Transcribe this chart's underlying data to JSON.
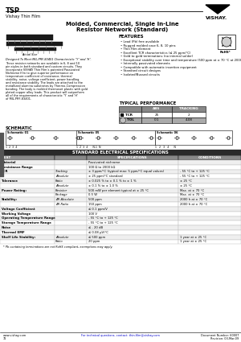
{
  "title_product": "TSP",
  "title_sub": "Vishay Thin Film",
  "title_main1": "Molded, Commercial, Single In-Line",
  "title_main2": "Resistor Network (Standard)",
  "brand": "VISHAY.",
  "features_title": "FEATURES",
  "features": [
    "Lead (Pb) free available",
    "Rugged molded case 6, 8, 10 pins",
    "Thin Film element",
    "Excellent TCR characteristics (≤ 25 ppm/°C)",
    "Gold to gold terminations (no internal solder)",
    "Exceptional stability over time and temperature (500 ppm at ± 70 °C at 2000 h)",
    "Internally passivated elements",
    "Compatible with automatic insertion equipment",
    "Standard circuit designs",
    "Isolated/Bussed circuits"
  ],
  "description1": "Designed To Meet MIL-PRF-83401 Characteristic ‘Y’ and ‘H’.",
  "description2": "These resistor networks are available in 6, 8 and 10 pin styles in both standard and custom circuits. They incorporate VISHAY Thin Film’s patented Passivated Nichrome film to give superior performance on temperature coefficient of resistance, thermal stability, noise, voltage coefficient, power handling and resistance stability. The leads are attached to the metallized alumina substrates by Thermo-Compression bonding. The body is molded thermoset plastic with gold plated copper alloy leads. This product will outperform all of the requirements of characteristic ‘Y’ and ‘H’ of MIL-PRF-83401.",
  "typical_title": "TYPICAL PERFORMANCE",
  "typical_headers": [
    "",
    "ABS",
    "TRACKING"
  ],
  "typical_row1_label": "TCR",
  "typical_row1_abs": "25",
  "typical_row1_track": "2",
  "typical_row2_label": "TOL",
  "typical_row2_abs": "0.1",
  "typical_row2_track": "4.08",
  "schematic_title": "SCHEMATIC",
  "sch_labels": [
    "Schematic 01",
    "Schematic 05",
    "Schematic 06"
  ],
  "sch_pins1": "1  2  3  4",
  "sch_pins2": "1  2  3  4      N-1  N",
  "sch_pins3": "1   2   3   4      N",
  "spec_title": "STANDARD ELECTRICAL SPECIFICATIONS",
  "spec_rows": [
    [
      "Material",
      "",
      "Passivated nichrome",
      ""
    ],
    [
      "Resistance Range",
      "",
      "100 Ω to 2000 kΩ",
      ""
    ],
    [
      "TCR",
      "Tracking",
      "± 3 ppm/°C (typical max: 5 ppm/°C equal values)",
      "- 55 °C to + 125 °C"
    ],
    [
      "",
      "Absolute",
      "± 25 ppm/°C standard",
      "- 55 °C to + 125 °C"
    ],
    [
      "Tolerance",
      "Ratio",
      "± 0.025 % to ± 0.1 % to ± 1 %",
      "± 25 °C"
    ],
    [
      "",
      "Absolute",
      "± 0.1 % to ± 1.0 %",
      "± 25 °C"
    ],
    [
      "Power Rating:",
      "Resistor",
      "500 mW per element typical at ± 25 °C",
      "Max. at ± 70 °C"
    ],
    [
      "",
      "Package",
      "0.5 W",
      "Max. at ± 70 °C"
    ],
    [
      "Stability:",
      "ΔR Absolute",
      "500 ppm",
      "2000 h at ± 70 °C"
    ],
    [
      "",
      "ΔR Ratio",
      "150 ppm",
      "2000 h at ± 70 °C"
    ],
    [
      "Voltage Coefficient",
      "",
      "≤ 0.1 ppm/V",
      ""
    ],
    [
      "Working Voltage",
      "",
      "100 V",
      ""
    ],
    [
      "Operating Temperature Range",
      "",
      "- 55 °C to + 125 °C",
      ""
    ],
    [
      "Storage Temperature Range",
      "",
      "- 55 °C to + 125 °C",
      ""
    ],
    [
      "Noise",
      "",
      "≤ - 20 dB",
      ""
    ],
    [
      "Thermal EMF",
      "",
      "≤ 0.08 μV/°C",
      ""
    ],
    [
      "Shelf Life Stability:",
      "Absolute",
      "≤ 500 ppm",
      "1 year at ± 25 °C"
    ],
    [
      "",
      "Ratio",
      "20 ppm",
      "1 year at ± 25 °C"
    ]
  ],
  "footnote": "* Pb containing terminations are not RoHS compliant, exemptions may apply.",
  "footer_left": "www.vishay.com",
  "footer_left2": "72",
  "footer_center": "For technical questions, contact: thin.film@vishay.com",
  "footer_right": "Document Number: 60007",
  "footer_right2": "Revision: 03-Mar-09",
  "tab_text": "THROUGH HOLE\nNETWORKS",
  "white": "#ffffff",
  "black": "#000000"
}
